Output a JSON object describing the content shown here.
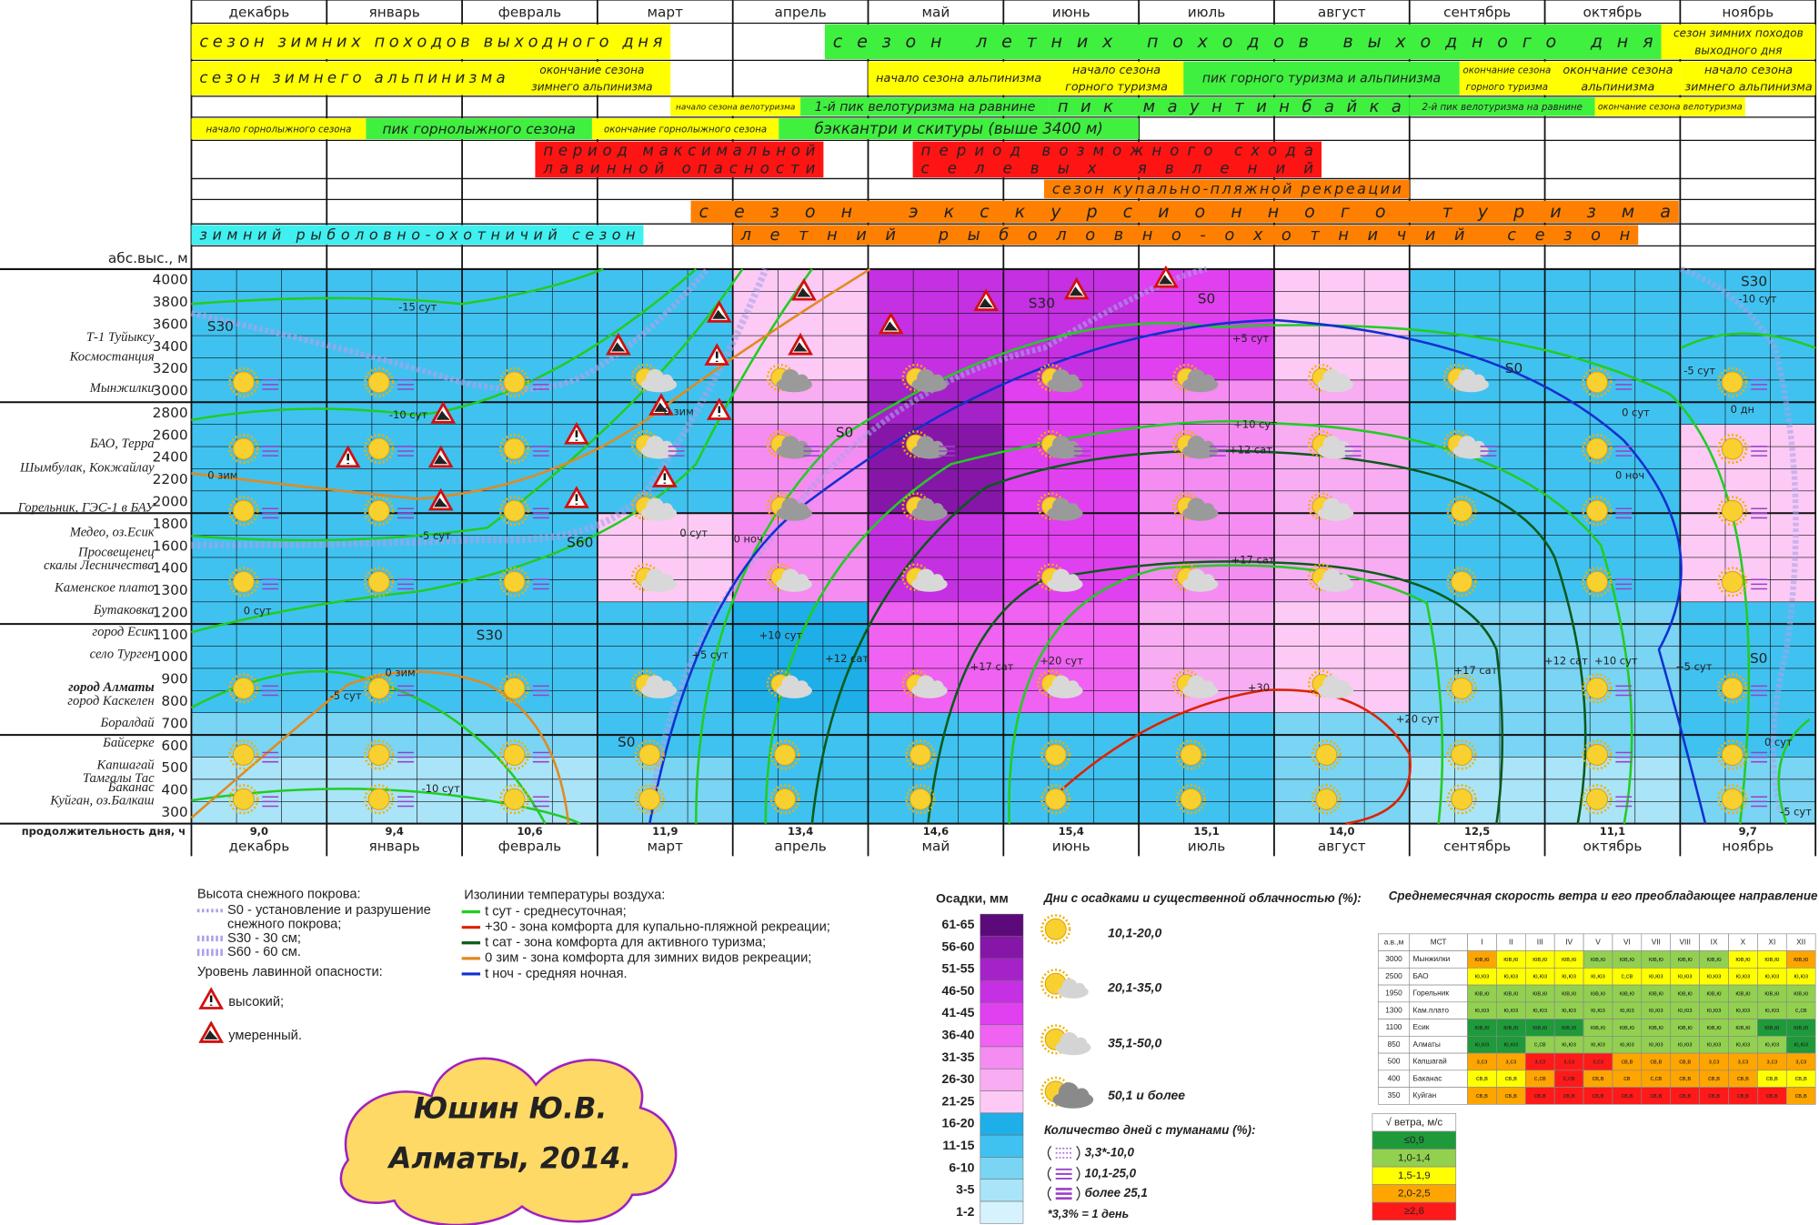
{
  "header": {
    "altitude_label": "абс.выс., м",
    "day_length_label": "продолжительность дня, ч"
  },
  "months": [
    "декабрь",
    "январь",
    "февраль",
    "март",
    "апрель",
    "май",
    "июнь",
    "июль",
    "август",
    "сентябрь",
    "октябрь",
    "ноябрь"
  ],
  "seasons": [
    {
      "lines": [
        "сезон зимних походов выходного дня"
      ],
      "color": "#ffff00"
    },
    {
      "lines": [
        "сезон летних походов выходного дня"
      ],
      "color": "#3ff03f"
    },
    {
      "lines": [
        "сезон зимних походов",
        "выходного дня"
      ],
      "color": "#ffff00"
    },
    {
      "lines": [
        "сезон зимнего альпинизма"
      ],
      "color": "#ffff00"
    },
    {
      "lines": [
        "окончание сезона",
        "зимнего альпинизма"
      ],
      "color": "#ffff00"
    },
    {
      "lines": [
        "начало сезона альпинизма"
      ],
      "color": "#ffff00"
    },
    {
      "lines": [
        "начало сезона",
        "горного туризма"
      ],
      "color": "#ffff00"
    },
    {
      "lines": [
        "пик горного туризма и альпинизма"
      ],
      "color": "#3ff03f"
    },
    {
      "lines": [
        "окончание сезона",
        "горного туризма"
      ],
      "color": "#ffff00"
    },
    {
      "lines": [
        "окончание сезона",
        "альпинизма"
      ],
      "color": "#ffff00"
    },
    {
      "lines": [
        "начало сезона",
        "зимнего альпинизма"
      ],
      "color": "#ffff00"
    },
    {
      "lines": [
        "начало сезона велотуризма"
      ],
      "color": "#ffff00"
    },
    {
      "lines": [
        "1-й пик велотуризма на равнине"
      ],
      "color": "#3ff03f"
    },
    {
      "lines": [
        "пик маунтинбайка"
      ],
      "color": "#3ff03f"
    },
    {
      "lines": [
        "2-й пик велотуризма на равнине"
      ],
      "color": "#3ff03f"
    },
    {
      "lines": [
        "окончание сезона велотуризма"
      ],
      "color": "#ffff00"
    },
    {
      "lines": [
        "начало горнолыжного сезона"
      ],
      "color": "#ffff00"
    },
    {
      "lines": [
        "пик горнолыжного сезона"
      ],
      "color": "#3ff03f"
    },
    {
      "lines": [
        "окончание горнолыжного сезона"
      ],
      "color": "#ffff00"
    },
    {
      "lines": [
        "бэккантри и скитуры (выше 3400 м)"
      ],
      "color": "#3ff03f"
    },
    {
      "lines": [
        "период максимальной",
        "лавинной опасности"
      ],
      "color": "#ff1414"
    },
    {
      "lines": [
        "период возможного схода",
        "селевых явлений"
      ],
      "color": "#ff1414"
    },
    {
      "lines": [
        "сезон купально-пляжной рекреации"
      ],
      "color": "#ff8000"
    },
    {
      "lines": [
        "сезон экскурсионного туризма"
      ],
      "color": "#ff8000"
    },
    {
      "lines": [
        "зимний рыболовно-охотничий сезон"
      ],
      "color": "#40f0f0"
    },
    {
      "lines": [
        "летний рыболовно-охотничий сезон"
      ],
      "color": "#ff8000"
    }
  ],
  "altitudes": [
    4000,
    3800,
    3600,
    3400,
    3200,
    3000,
    2800,
    2600,
    2400,
    2200,
    2000,
    1800,
    1600,
    1400,
    1300,
    1200,
    1100,
    1000,
    900,
    800,
    700,
    600,
    500,
    400,
    300
  ],
  "locations": [
    "Т-1 Туйыксу",
    "Космостанция",
    "Мынжилки",
    "БАО, Терра",
    "Шымбулак, Кокжайлау",
    "Горельник, ГЭС-1 в БАУ",
    "Медео, оз.Есик",
    "Просвещенец",
    "скалы Лесничества",
    "Каменское плато",
    "Бутаковка",
    "город Есик",
    "село Турген",
    "город Алматы",
    "город Каскелен",
    "Боралдай",
    "Байсерке",
    "Капшагай",
    "Тамгалы Тас",
    "Баканас",
    "Куйган, оз.Балкаш"
  ],
  "day_length": [
    "9,0",
    "9,4",
    "10,6",
    "11,9",
    "13,4",
    "14,6",
    "15,4",
    "15,1",
    "14,0",
    "12,5",
    "11,1",
    "9,7"
  ],
  "precipitation": {
    "title": "Осадки, мм",
    "classes": [
      {
        "label": "61-65",
        "color": "#5c0a7a"
      },
      {
        "label": "56-60",
        "color": "#8616a8"
      },
      {
        "label": "51-55",
        "color": "#a522c8"
      },
      {
        "label": "46-50",
        "color": "#c530e2"
      },
      {
        "label": "41-45",
        "color": "#e040f0"
      },
      {
        "label": "36-40",
        "color": "#f062f2"
      },
      {
        "label": "31-35",
        "color": "#f48cf2"
      },
      {
        "label": "26-30",
        "color": "#f8acf2"
      },
      {
        "label": "21-25",
        "color": "#fccaf4"
      },
      {
        "label": "16-20",
        "color": "#1eaee8"
      },
      {
        "label": "11-15",
        "color": "#40c2f0"
      },
      {
        "label": "6-10",
        "color": "#7ad4f4"
      },
      {
        "label": "3-5",
        "color": "#aae4f8"
      },
      {
        "label": "1-2",
        "color": "#d6f2fc"
      }
    ],
    "grid": [
      [
        10,
        10,
        10,
        10,
        8,
        3,
        3,
        4,
        8,
        10,
        10,
        10
      ],
      [
        10,
        10,
        10,
        10,
        8,
        3,
        3,
        4,
        8,
        10,
        10,
        10
      ],
      [
        10,
        10,
        10,
        10,
        8,
        3,
        3,
        4,
        8,
        10,
        10,
        10
      ],
      [
        10,
        10,
        10,
        10,
        8,
        3,
        3,
        4,
        8,
        10,
        10,
        10
      ],
      [
        10,
        10,
        10,
        10,
        8,
        3,
        3,
        4,
        8,
        10,
        10,
        10
      ],
      [
        10,
        10,
        10,
        10,
        7,
        2,
        4,
        6,
        7,
        10,
        10,
        10
      ],
      [
        10,
        10,
        10,
        10,
        7,
        2,
        4,
        6,
        7,
        10,
        10,
        10
      ],
      [
        10,
        10,
        10,
        10,
        6,
        1,
        4,
        6,
        7,
        10,
        10,
        8
      ],
      [
        10,
        10,
        10,
        10,
        6,
        1,
        4,
        6,
        7,
        10,
        10,
        8
      ],
      [
        10,
        10,
        10,
        10,
        6,
        1,
        4,
        6,
        7,
        10,
        10,
        8
      ],
      [
        10,
        10,
        10,
        10,
        6,
        1,
        4,
        6,
        7,
        10,
        10,
        8
      ],
      [
        10,
        10,
        10,
        8,
        6,
        3,
        4,
        6,
        7,
        10,
        10,
        8
      ],
      [
        10,
        10,
        10,
        8,
        6,
        3,
        4,
        6,
        7,
        10,
        10,
        8
      ],
      [
        10,
        10,
        10,
        8,
        6,
        3,
        4,
        6,
        7,
        10,
        10,
        8
      ],
      [
        10,
        10,
        10,
        8,
        6,
        3,
        4,
        6,
        7,
        10,
        10,
        8
      ],
      [
        10,
        10,
        10,
        10,
        9,
        5,
        5,
        7,
        8,
        11,
        11,
        10
      ],
      [
        10,
        10,
        10,
        10,
        9,
        5,
        5,
        7,
        8,
        11,
        11,
        10
      ],
      [
        10,
        10,
        10,
        10,
        9,
        5,
        5,
        7,
        8,
        11,
        11,
        10
      ],
      [
        10,
        10,
        10,
        10,
        9,
        5,
        5,
        7,
        8,
        11,
        11,
        10
      ],
      [
        10,
        10,
        10,
        10,
        9,
        5,
        5,
        7,
        8,
        11,
        11,
        10
      ],
      [
        11,
        11,
        11,
        10,
        10,
        10,
        10,
        10,
        11,
        11,
        11,
        10
      ],
      [
        11,
        11,
        11,
        10,
        10,
        10,
        10,
        10,
        11,
        11,
        11,
        10
      ],
      [
        12,
        12,
        12,
        11,
        10,
        10,
        10,
        10,
        11,
        12,
        12,
        11
      ],
      [
        12,
        12,
        12,
        11,
        10,
        10,
        10,
        10,
        11,
        12,
        12,
        11
      ],
      [
        12,
        12,
        12,
        11,
        10,
        10,
        10,
        10,
        11,
        12,
        12,
        11
      ]
    ]
  },
  "isolines": {
    "title": "Изолинии температуры воздуха:",
    "items": [
      {
        "label": "t сут - среднесуточная;",
        "color": "#22cc22"
      },
      {
        "label": "+30 - зона комфорта для купально-пляжной рекреации;",
        "color": "#dd2200"
      },
      {
        "label": "t сат - зона комфорта для активного туризма;",
        "color": "#0a5a1a"
      },
      {
        "label": "0 зим - зона комфорта для зимних видов рекреации;",
        "color": "#e08a20"
      },
      {
        "label": "t ноч - средняя ночная.",
        "color": "#1030d0"
      }
    ],
    "labels": [
      "-15 сут",
      "-10 сут",
      "-5 сут",
      "0 сут",
      "-5 сут",
      "-10 сут",
      "0 зим",
      "0 зим",
      "0 зим",
      "S30",
      "S30",
      "S60",
      "S0",
      "S0",
      "S30",
      "S0",
      "S0",
      "S30",
      "+5 сут",
      "+10 сут",
      "+12 сат",
      "+17 сат",
      "+30",
      "+20 сут",
      "+5 сут",
      "+10 сут",
      "+12 сат",
      "+17 сат",
      "0 ноч",
      "0 сут",
      "0 ноч",
      "0 сут",
      "0 дн",
      "-5 сут",
      "-10 сут",
      "+20 сут",
      "+17 сат",
      "+12 сат",
      "+10 сут",
      "+5 сут",
      "S0",
      "0 сут",
      "-5 сут"
    ]
  },
  "snow": {
    "title": "Высота снежного покрова:",
    "items": [
      "S0 - установление и разрушение",
      "снежного покрова;",
      "S30 - 30 см;",
      "S60 - 60 см."
    ]
  },
  "avalanche": {
    "title": "Уровень лавинной опасности:",
    "items": [
      "высокий;",
      "умеренный."
    ]
  },
  "clouds": {
    "title": "Дни с осадками и существенной облачностью (%):",
    "items": [
      "10,1-20,0",
      "20,1-35,0",
      "35,1-50,0",
      "50,1 и более"
    ]
  },
  "fog": {
    "title": "Количество дней с туманами (%):",
    "items": [
      "3,3*-10,0",
      "10,1-25,0",
      "более 25,1"
    ],
    "note": "*3,3% = 1 день"
  },
  "wind": {
    "title": "Среднемесячная скорость ветра и его преобладающее направление",
    "columns": [
      "а.в.,м",
      "МСТ",
      "I",
      "II",
      "III",
      "IV",
      "V",
      "VI",
      "VII",
      "VIII",
      "IX",
      "X",
      "XI",
      "XII"
    ],
    "rows": [
      {
        "alt": 3000,
        "station": "Мынжилки",
        "dirs": [
          "юв,ю",
          "юв,ю",
          "юв,ю",
          "юв,ю",
          "юв,ю",
          "юв,ю",
          "юв,ю",
          "юв,ю",
          "юв,ю",
          "юв,ю",
          "юв,ю",
          "юв,ю"
        ],
        "speed": [
          3,
          2,
          2,
          2,
          1,
          1,
          1,
          1,
          1,
          2,
          2,
          3
        ]
      },
      {
        "alt": 2500,
        "station": "БАО",
        "dirs": [
          "ю,юз",
          "ю,юз",
          "ю,юз",
          "ю,юз",
          "ю,юз",
          "с,св",
          "ю,юз",
          "ю,юз",
          "ю,юз",
          "ю,юз",
          "ю,юз",
          "ю,юз"
        ],
        "speed": [
          2,
          2,
          2,
          2,
          2,
          2,
          2,
          2,
          2,
          2,
          2,
          2
        ]
      },
      {
        "alt": 1950,
        "station": "Горельник",
        "dirs": [
          "юв,ю",
          "юв,ю",
          "юв,ю",
          "юв,ю",
          "юв,ю",
          "юв,ю",
          "юв,ю",
          "юв,ю",
          "юв,ю",
          "юв,ю",
          "юв,ю",
          "юв,ю"
        ],
        "speed": [
          1,
          1,
          1,
          1,
          1,
          1,
          1,
          1,
          1,
          1,
          1,
          1
        ]
      },
      {
        "alt": 1300,
        "station": "Кам.плато",
        "dirs": [
          "ю,юз",
          "ю,юз",
          "ю,юз",
          "ю,юз",
          "ю,юз",
          "ю,юз",
          "ю,юз",
          "ю,юз",
          "ю,юз",
          "ю,юз",
          "ю,юз",
          "с,св"
        ],
        "speed": [
          1,
          1,
          1,
          1,
          1,
          1,
          1,
          1,
          1,
          1,
          1,
          1
        ]
      },
      {
        "alt": 1100,
        "station": "Есик",
        "dirs": [
          "юв,ю",
          "юв,ю",
          "юв,ю",
          "юв,ю",
          "юв,ю",
          "юв,ю",
          "юв,ю",
          "юв,ю",
          "юв,ю",
          "юв,ю",
          "юв,ю",
          "юв,ю"
        ],
        "speed": [
          0,
          0,
          0,
          0,
          1,
          1,
          1,
          1,
          1,
          1,
          0,
          0
        ]
      },
      {
        "alt": 850,
        "station": "Алматы",
        "dirs": [
          "ю,юз",
          "ю,юз",
          "с,св",
          "ю,юз",
          "ю,юз",
          "ю,юз",
          "ю,юз",
          "ю,юз",
          "ю,юз",
          "ю,юз",
          "ю,юз",
          "ю,юз"
        ],
        "speed": [
          0,
          0,
          1,
          1,
          1,
          1,
          1,
          1,
          1,
          1,
          1,
          0
        ]
      },
      {
        "alt": 500,
        "station": "Капшагай",
        "dirs": [
          "з,сз",
          "з,сз",
          "з,сз",
          "з,сз",
          "з,сз",
          "св,в",
          "св,в",
          "св,в",
          "з,сз",
          "з,сз",
          "з,сз",
          "з,сз"
        ],
        "speed": [
          3,
          3,
          4,
          4,
          4,
          3,
          3,
          3,
          3,
          3,
          3,
          3
        ]
      },
      {
        "alt": 400,
        "station": "Баканас",
        "dirs": [
          "св,в",
          "св,в",
          "с,св",
          "с,св",
          "св,в",
          "св",
          "с,св",
          "св,в",
          "св,в",
          "св,в",
          "св,в",
          "св,в"
        ],
        "speed": [
          2,
          2,
          3,
          4,
          3,
          3,
          3,
          3,
          3,
          3,
          2,
          2
        ]
      },
      {
        "alt": 350,
        "station": "Куйган",
        "dirs": [
          "св,в",
          "св,в",
          "св,в",
          "св,в",
          "св,в",
          "св,в",
          "св,в",
          "св,в",
          "св,в",
          "св,в",
          "св,в",
          "св,в"
        ],
        "speed": [
          3,
          3,
          4,
          4,
          4,
          4,
          4,
          4,
          4,
          4,
          4,
          3
        ]
      }
    ],
    "legend": {
      "title": "√ ветра, м/с",
      "classes": [
        {
          "label": "≤0,9",
          "color": "#1e9a3a"
        },
        {
          "label": "1,0-1,4",
          "color": "#92d050"
        },
        {
          "label": "1,5-1,9",
          "color": "#ffff00"
        },
        {
          "label": "2,0-2,5",
          "color": "#ffa500"
        },
        {
          "label": "≥2,6",
          "color": "#ff1a1a"
        }
      ]
    }
  },
  "author": [
    "Юшин Ю.В.",
    "Алматы, 2014."
  ]
}
